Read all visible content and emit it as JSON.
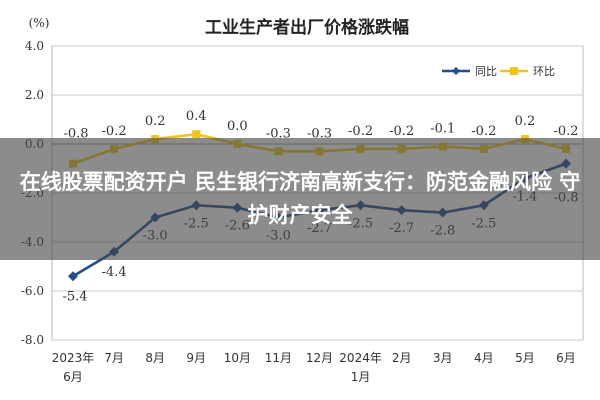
{
  "chart_data": {
    "type": "line",
    "title": "工业生产者出厂价格涨跌幅",
    "unit_label": "(%)",
    "categories": [
      [
        "2023年",
        "6月"
      ],
      [
        "7月"
      ],
      [
        "8月"
      ],
      [
        "9月"
      ],
      [
        "10月"
      ],
      [
        "11月"
      ],
      [
        "12月"
      ],
      [
        "2024年",
        "1月"
      ],
      [
        "2月"
      ],
      [
        "3月"
      ],
      [
        "4月"
      ],
      [
        "5月"
      ],
      [
        "6月"
      ]
    ],
    "ylim": [
      -8.0,
      4.0
    ],
    "yticks": [
      "4.0",
      "2.0",
      "0.0",
      "-2.0",
      "-4.0",
      "-6.0",
      "-8.0"
    ],
    "grid": true,
    "legend_position": "top-right",
    "series": [
      {
        "name": "同比",
        "color": "#1f4e8c",
        "values": [
          -5.4,
          -4.4,
          -3.0,
          -2.5,
          -2.6,
          -3.0,
          -2.7,
          -2.5,
          -2.7,
          -2.8,
          -2.5,
          -1.4,
          -0.8
        ],
        "labels": [
          "-5.4",
          "-4.4",
          "-3.0",
          "-2.5",
          "-2.6",
          "-3.0",
          "-2.7",
          "-2.5",
          "-2.7",
          "-2.8",
          "-2.5",
          "-1.4",
          "-0.8"
        ]
      },
      {
        "name": "环比",
        "color": "#f0c419",
        "values": [
          -0.8,
          -0.2,
          0.2,
          0.4,
          0.0,
          -0.3,
          -0.3,
          -0.2,
          -0.2,
          -0.1,
          -0.2,
          0.2,
          -0.2
        ],
        "labels": [
          "-0.8",
          "-0.2",
          "0.2",
          "0.4",
          "0.0",
          "-0.3",
          "-0.3",
          "-0.2",
          "-0.2",
          "-0.1",
          "-0.2",
          "0.2",
          "-0.2"
        ]
      }
    ]
  },
  "overlay": {
    "headline": "在线股票配资开户 民生银行济南高新支行：防范金融风险 守护财产安全"
  }
}
